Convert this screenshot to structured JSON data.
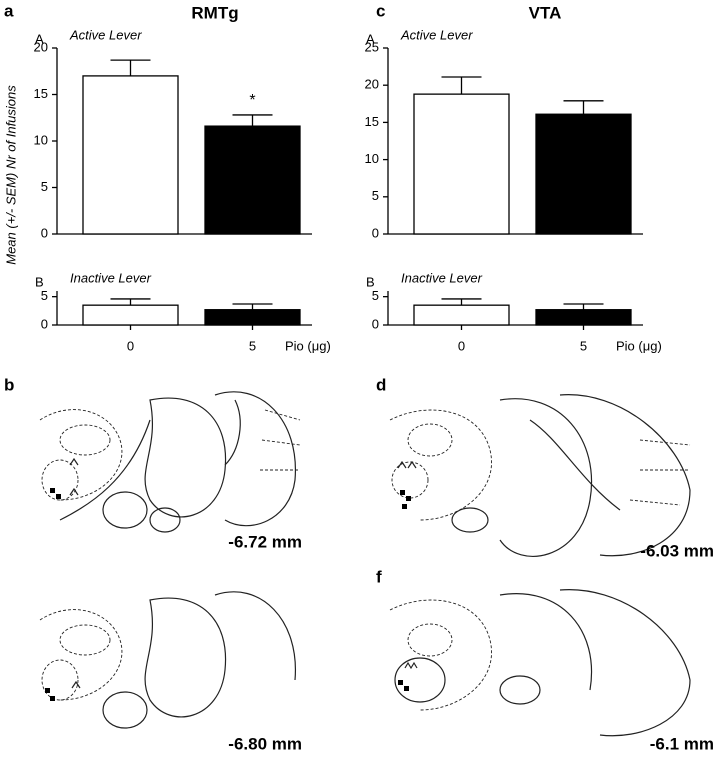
{
  "panels": [
    {
      "letter": "a",
      "title": "RMTg"
    },
    {
      "letter": "c",
      "title": "VTA"
    }
  ],
  "y_axis_label": "Mean (+/- SEM) Nr of Infusions",
  "chart_data": [
    {
      "type": "bar",
      "label": "A",
      "subtitle": "Active Lever",
      "categories": [
        null,
        null
      ],
      "values": [
        17,
        11.6
      ],
      "errors": [
        1.7,
        1.2
      ],
      "colors": [
        "#ffffff",
        "#000000"
      ],
      "ylim": [
        0,
        20
      ],
      "yticks": [
        0,
        5,
        10,
        15,
        20
      ],
      "annotation": "*"
    },
    {
      "type": "bar",
      "label": "B",
      "subtitle": "Inactive Lever",
      "categories": [
        "0",
        "5"
      ],
      "x_label": "Pio (μg)",
      "values": [
        3.5,
        2.7
      ],
      "errors": [
        1.1,
        1.0
      ],
      "colors": [
        "#ffffff",
        "#000000"
      ],
      "ylim": [
        0,
        6
      ],
      "yticks": [
        0,
        5
      ]
    },
    {
      "type": "bar",
      "label": "A",
      "subtitle": "Active Lever",
      "categories": [
        null,
        null
      ],
      "values": [
        18.8,
        16.1
      ],
      "errors": [
        2.3,
        1.8
      ],
      "colors": [
        "#ffffff",
        "#000000"
      ],
      "ylim": [
        0,
        25
      ],
      "yticks": [
        0,
        5,
        10,
        15,
        20,
        25
      ]
    },
    {
      "type": "bar",
      "label": "B",
      "subtitle": "Inactive Lever",
      "categories": [
        "0",
        "5"
      ],
      "x_label": "Pio (μg)",
      "values": [
        3.5,
        2.7
      ],
      "errors": [
        1.1,
        1.0
      ],
      "colors": [
        "#ffffff",
        "#000000"
      ],
      "ylim": [
        0,
        6
      ],
      "yticks": [
        0,
        5
      ]
    }
  ],
  "atlas": [
    {
      "letter": "b",
      "label": "-6.72 mm"
    },
    {
      "letter": "d",
      "label": "-6.03 mm"
    },
    {
      "label": "-6.80 mm"
    },
    {
      "letter": "f",
      "label": "-6.1 mm"
    }
  ]
}
